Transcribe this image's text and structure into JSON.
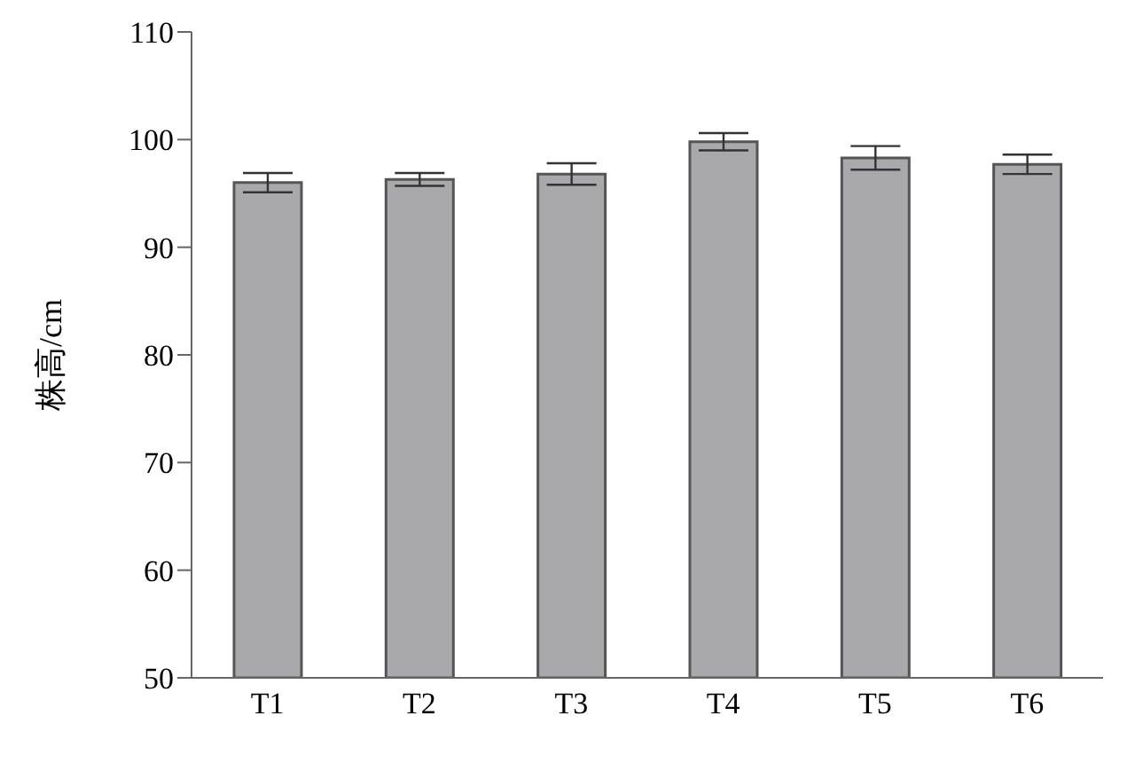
{
  "chart_data": {
    "type": "bar",
    "ylabel": "株高/cm",
    "categories": [
      "T1",
      "T2",
      "T3",
      "T4",
      "T5",
      "T6"
    ],
    "series": [
      {
        "color": "#a9a9ab",
        "values": [
          96.0,
          96.3,
          96.8,
          99.8,
          98.3,
          97.7
        ],
        "errors": [
          0.9,
          0.6,
          1.0,
          0.8,
          1.1,
          0.9
        ]
      }
    ],
    "ylim": [
      50,
      110
    ],
    "yticks": [
      50,
      60,
      70,
      80,
      90,
      100,
      110
    ],
    "grid": false,
    "legend": false
  }
}
